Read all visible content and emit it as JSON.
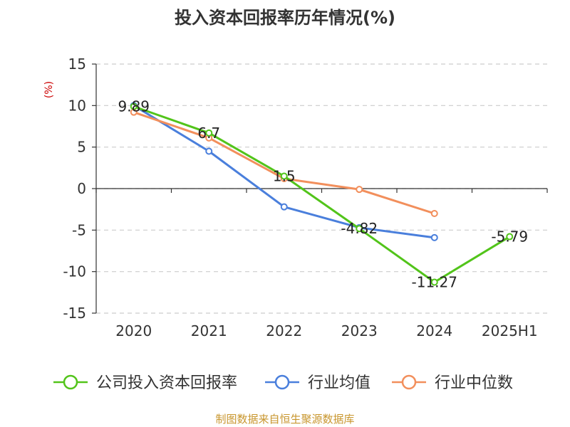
{
  "chart_data": {
    "type": "line",
    "title": "投入资本回报率历年情况(%)",
    "ylabel": "(%)",
    "categories": [
      "2020",
      "2021",
      "2022",
      "2023",
      "2024",
      "2025H1"
    ],
    "ylim": [
      -15,
      15
    ],
    "yticks": [
      15,
      10,
      5,
      0,
      -5,
      -10,
      -15
    ],
    "grid": true,
    "legend_position": "bottom",
    "series": [
      {
        "name": "公司投入资本回报率",
        "color": "#52c41a",
        "values": [
          9.89,
          6.7,
          1.5,
          -4.82,
          -11.27,
          -5.79
        ],
        "labels": [
          "9.89",
          "6.7",
          "1.5",
          "-4.82",
          "-11.27",
          "-5.79"
        ]
      },
      {
        "name": "行业均值",
        "color": "#4a7fdc",
        "values": [
          10.0,
          4.5,
          -2.2,
          -4.7,
          -5.9,
          null
        ]
      },
      {
        "name": "行业中位数",
        "color": "#f28f5c",
        "values": [
          9.2,
          6.1,
          1.2,
          -0.1,
          -3.0,
          null
        ]
      }
    ]
  },
  "source_note": "制图数据来自恒生聚源数据库"
}
